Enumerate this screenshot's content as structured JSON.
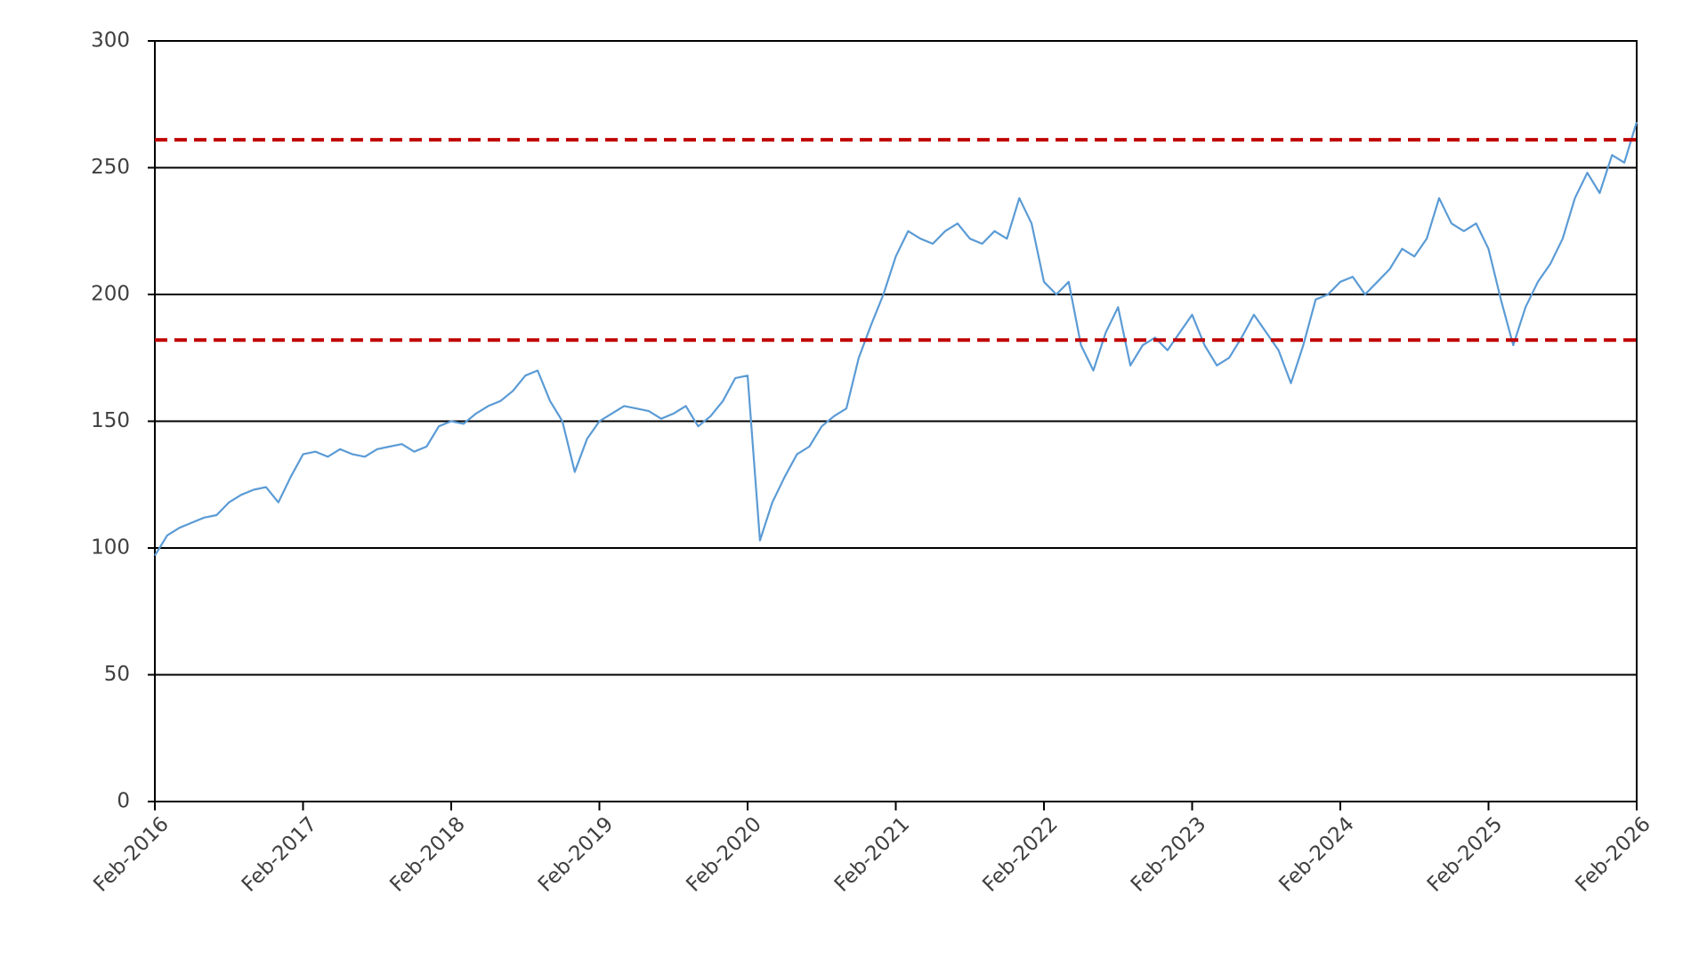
{
  "chart_data": {
    "type": "line",
    "x": [
      "Feb-2016",
      "Mar-2016",
      "Apr-2016",
      "May-2016",
      "Jun-2016",
      "Jul-2016",
      "Aug-2016",
      "Sep-2016",
      "Oct-2016",
      "Nov-2016",
      "Dec-2016",
      "Jan-2017",
      "Feb-2017",
      "Mar-2017",
      "Apr-2017",
      "May-2017",
      "Jun-2017",
      "Jul-2017",
      "Aug-2017",
      "Sep-2017",
      "Oct-2017",
      "Nov-2017",
      "Dec-2017",
      "Jan-2018",
      "Feb-2018",
      "Mar-2018",
      "Apr-2018",
      "May-2018",
      "Jun-2018",
      "Jul-2018",
      "Aug-2018",
      "Sep-2018",
      "Oct-2018",
      "Nov-2018",
      "Dec-2018",
      "Jan-2019",
      "Feb-2019",
      "Mar-2019",
      "Apr-2019",
      "May-2019",
      "Jun-2019",
      "Jul-2019",
      "Aug-2019",
      "Sep-2019",
      "Oct-2019",
      "Nov-2019",
      "Dec-2019",
      "Jan-2020",
      "Feb-2020",
      "Mar-2020",
      "Apr-2020",
      "May-2020",
      "Jun-2020",
      "Jul-2020",
      "Aug-2020",
      "Sep-2020",
      "Oct-2020",
      "Nov-2020",
      "Dec-2020",
      "Jan-2021",
      "Feb-2021",
      "Mar-2021",
      "Apr-2021",
      "May-2021",
      "Jun-2021",
      "Jul-2021",
      "Aug-2021",
      "Sep-2021",
      "Oct-2021",
      "Nov-2021",
      "Dec-2021",
      "Jan-2022",
      "Feb-2022",
      "Mar-2022",
      "Apr-2022",
      "May-2022",
      "Jun-2022",
      "Jul-2022",
      "Aug-2022",
      "Sep-2022",
      "Oct-2022",
      "Nov-2022",
      "Dec-2022",
      "Jan-2023",
      "Feb-2023",
      "Mar-2023",
      "Apr-2023",
      "May-2023",
      "Jun-2023",
      "Jul-2023",
      "Aug-2023",
      "Sep-2023",
      "Oct-2023",
      "Nov-2023",
      "Dec-2023",
      "Jan-2024",
      "Feb-2024",
      "Mar-2024",
      "Apr-2024",
      "May-2024",
      "Jun-2024",
      "Jul-2024",
      "Aug-2024",
      "Sep-2024",
      "Oct-2024",
      "Nov-2024",
      "Dec-2024",
      "Jan-2025",
      "Feb-2025",
      "Mar-2025",
      "Apr-2025",
      "May-2025",
      "Jun-2025",
      "Jul-2025",
      "Aug-2025",
      "Sep-2025",
      "Oct-2025",
      "Nov-2025",
      "Dec-2025",
      "Jan-2026",
      "Feb-2026"
    ],
    "values": [
      97,
      105,
      108,
      110,
      112,
      113,
      118,
      121,
      123,
      124,
      118,
      128,
      137,
      138,
      136,
      139,
      137,
      136,
      139,
      140,
      141,
      138,
      140,
      148,
      150,
      149,
      153,
      156,
      158,
      162,
      168,
      170,
      158,
      150,
      130,
      143,
      150,
      153,
      156,
      155,
      154,
      151,
      153,
      156,
      148,
      152,
      158,
      167,
      168,
      103,
      118,
      128,
      137,
      140,
      148,
      152,
      155,
      175,
      188,
      200,
      215,
      225,
      222,
      220,
      225,
      228,
      222,
      220,
      225,
      222,
      238,
      228,
      205,
      200,
      205,
      180,
      170,
      185,
      195,
      172,
      180,
      183,
      178,
      185,
      192,
      180,
      172,
      175,
      183,
      192,
      185,
      178,
      165,
      180,
      198,
      200,
      205,
      207,
      200,
      205,
      210,
      218,
      215,
      222,
      238,
      228,
      225,
      228,
      218,
      198,
      180,
      195,
      205,
      212,
      222,
      238,
      248,
      240,
      255,
      252,
      268
    ],
    "color": "#5b9bd5",
    "xticks": [
      "Feb-2016",
      "Feb-2017",
      "Feb-2018",
      "Feb-2019",
      "Feb-2020",
      "Feb-2021",
      "Feb-2022",
      "Feb-2023",
      "Feb-2024",
      "Feb-2025",
      "Feb-2026"
    ],
    "ylim": [
      0,
      300
    ],
    "yticks": [
      0,
      50,
      100,
      150,
      200,
      250,
      300
    ],
    "grid": true,
    "reference_lines": [
      {
        "value": 261,
        "color": "#c00000"
      },
      {
        "value": 182,
        "color": "#c00000"
      }
    ]
  }
}
